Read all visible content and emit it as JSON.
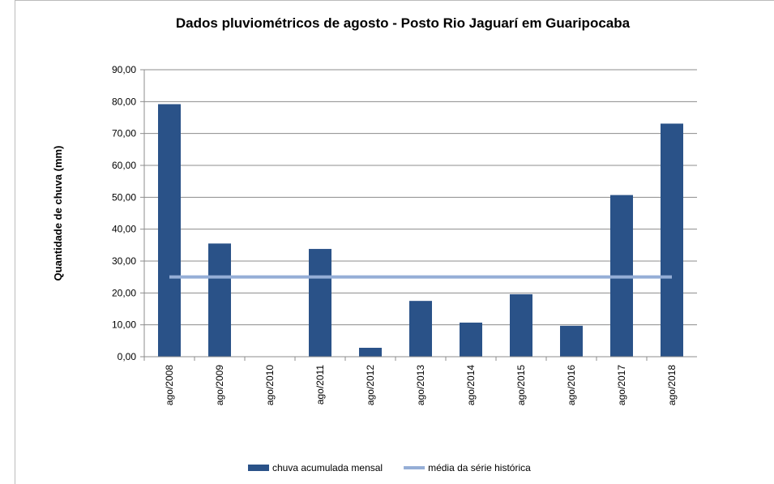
{
  "chart_data": {
    "type": "bar",
    "title": "Dados pluviométricos de agosto - Posto Rio Jaguarí em Guaripocaba",
    "y_label": "Quantidade de chuva (mm)",
    "categories": [
      "ago/2008",
      "ago/2009",
      "ago/2010",
      "ago/2011",
      "ago/2012",
      "ago/2013",
      "ago/2014",
      "ago/2015",
      "ago/2016",
      "ago/2017",
      "ago/2018"
    ],
    "series": [
      {
        "name": "chuva acumulada mensal",
        "type": "bar",
        "color": "#2a5288",
        "values": [
          79.2,
          35.5,
          0,
          33.8,
          2.8,
          17.5,
          10.7,
          19.6,
          9.7,
          50.7,
          73.1
        ]
      },
      {
        "name": "média da série histórica",
        "type": "line",
        "color": "#95aed6",
        "values": [
          25,
          25,
          25,
          25,
          25,
          25,
          25,
          25,
          25,
          25,
          25
        ]
      }
    ],
    "ylim": [
      0,
      90
    ],
    "yticks": [
      {
        "value": 0,
        "label": "0,00"
      },
      {
        "value": 10,
        "label": "10,00"
      },
      {
        "value": 20,
        "label": "20,00"
      },
      {
        "value": 30,
        "label": "30,00"
      },
      {
        "value": 40,
        "label": "40,00"
      },
      {
        "value": 50,
        "label": "50,00"
      },
      {
        "value": 60,
        "label": "60,00"
      },
      {
        "value": 70,
        "label": "70,00"
      },
      {
        "value": 80,
        "label": "80,00"
      },
      {
        "value": 90,
        "label": "90,00"
      }
    ],
    "grid": true,
    "legend": "bottom"
  }
}
